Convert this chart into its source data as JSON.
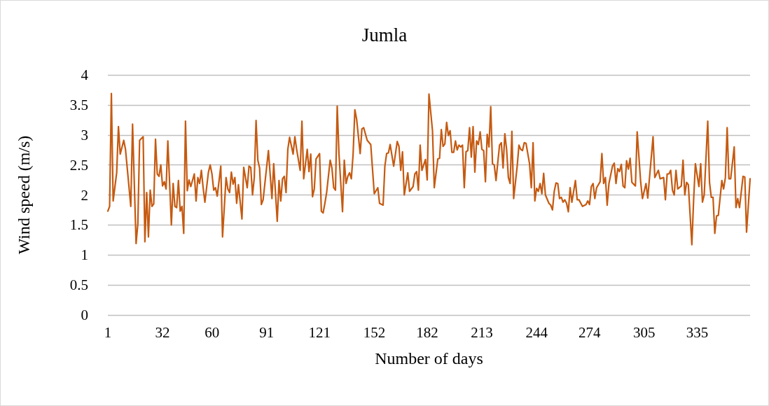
{
  "chart_data": {
    "type": "line",
    "title": "Jumla",
    "xlabel": "Number of days",
    "ylabel": "Wind speed (m/s)",
    "xlim": [
      1,
      365
    ],
    "xticks": [
      1,
      32,
      60,
      91,
      121,
      152,
      182,
      213,
      244,
      274,
      305,
      335
    ],
    "ylim": [
      0,
      4
    ],
    "yticks": [
      0,
      0.5,
      1,
      1.5,
      2,
      2.5,
      3,
      3.5,
      4
    ],
    "grid": "y",
    "marker": "none",
    "line_style": "solid",
    "series": [
      {
        "color": "#c55a11",
        "x": [
          1,
          2,
          3,
          4,
          6,
          7,
          8,
          10,
          11,
          14,
          15,
          17,
          18,
          19,
          21,
          22,
          23,
          24,
          25,
          26,
          27,
          28,
          29,
          30,
          31,
          32,
          33,
          34,
          35,
          37,
          38,
          39,
          40,
          41,
          42,
          43,
          44,
          45,
          46,
          47,
          48,
          50,
          51,
          52,
          53,
          54,
          55,
          56,
          58,
          59,
          60,
          61,
          62,
          63,
          65,
          66,
          68,
          69,
          70,
          71,
          72,
          73,
          74,
          75,
          77,
          78,
          80,
          81,
          82,
          83,
          84,
          85,
          86,
          87,
          88,
          89,
          92,
          94,
          95,
          97,
          98,
          99,
          100,
          101,
          102,
          103,
          104,
          106,
          107,
          108,
          110,
          111,
          112,
          114,
          115,
          116,
          117,
          118,
          119,
          121,
          122,
          123,
          124,
          125,
          127,
          128,
          129,
          130,
          131,
          132,
          134,
          135,
          136,
          137,
          138,
          139,
          140,
          141,
          142,
          144,
          145,
          146,
          148,
          150,
          152,
          154,
          155,
          157,
          158,
          159,
          160,
          161,
          163,
          165,
          166,
          167,
          168,
          169,
          171,
          172,
          174,
          175,
          176,
          177,
          178,
          179,
          181,
          182,
          183,
          185,
          186,
          188,
          189,
          190,
          191,
          192,
          193,
          194,
          195,
          196,
          197,
          198,
          199,
          200,
          201,
          202,
          203,
          204,
          205,
          206,
          207,
          208,
          209,
          210,
          211,
          212,
          213,
          214,
          215,
          216,
          217,
          218,
          219,
          220,
          221,
          222,
          223,
          224,
          225,
          226,
          227,
          228,
          229,
          230,
          231,
          233,
          234,
          235,
          236,
          237,
          238,
          240,
          241,
          242,
          243,
          244,
          245,
          246,
          247,
          248,
          249,
          251,
          252,
          253,
          254,
          255,
          256,
          257,
          258,
          259,
          260,
          261,
          262,
          263,
          264,
          266,
          267,
          268,
          270,
          272,
          273,
          274,
          275,
          276,
          277,
          278,
          280,
          281,
          282,
          283,
          284,
          285,
          287,
          288,
          289,
          290,
          291,
          292,
          293,
          294,
          295,
          296,
          297,
          298,
          300,
          301,
          303,
          304,
          306,
          307,
          310,
          311,
          312,
          313,
          314,
          316,
          317,
          318,
          319,
          320,
          321,
          322,
          323,
          324,
          326,
          327,
          328,
          329,
          330,
          332,
          333,
          334,
          336,
          337,
          338,
          339,
          341,
          342,
          343,
          344,
          345,
          346,
          347,
          349,
          350,
          351,
          352,
          353,
          354,
          356,
          357,
          358,
          359,
          361,
          362,
          363,
          365
        ],
        "values": [
          1.73,
          1.81,
          3.69,
          1.9,
          2.37,
          3.14,
          2.68,
          2.91,
          2.76,
          1.81,
          3.18,
          1.19,
          1.52,
          2.91,
          2.97,
          1.22,
          2.04,
          1.3,
          2.08,
          1.81,
          1.85,
          2.93,
          2.35,
          2.31,
          2.5,
          2.15,
          2.22,
          2.1,
          2.9,
          1.5,
          2.19,
          1.81,
          1.79,
          2.24,
          1.73,
          1.81,
          1.36,
          3.23,
          2.07,
          2.25,
          2.14,
          2.35,
          1.9,
          2.29,
          2.19,
          2.41,
          2.12,
          1.88,
          2.38,
          2.5,
          2.35,
          2.08,
          2.12,
          1.98,
          2.48,
          1.3,
          2.29,
          2.1,
          2.04,
          2.38,
          2.18,
          2.29,
          1.86,
          2.17,
          1.6,
          2.46,
          2.12,
          2.48,
          2.46,
          2.0,
          2.29,
          3.24,
          2.58,
          2.45,
          1.84,
          1.92,
          2.74,
          1.94,
          2.52,
          1.56,
          2.24,
          1.9,
          2.27,
          2.31,
          2.04,
          2.76,
          2.96,
          2.68,
          2.97,
          2.76,
          2.41,
          3.23,
          2.27,
          2.76,
          2.39,
          2.68,
          1.97,
          2.1,
          2.6,
          2.69,
          1.73,
          1.7,
          1.86,
          2.04,
          2.58,
          2.45,
          2.12,
          2.08,
          3.48,
          2.68,
          1.72,
          2.58,
          2.19,
          2.31,
          2.37,
          2.27,
          2.68,
          3.42,
          3.26,
          2.69,
          3.1,
          3.12,
          2.91,
          2.84,
          2.02,
          2.12,
          1.86,
          1.83,
          2.48,
          2.69,
          2.7,
          2.84,
          2.48,
          2.89,
          2.81,
          2.41,
          2.72,
          2.0,
          2.37,
          2.06,
          2.14,
          2.35,
          2.39,
          2.08,
          2.83,
          2.41,
          2.59,
          2.25,
          3.68,
          3.07,
          2.12,
          2.6,
          2.61,
          3.09,
          2.81,
          2.85,
          3.21,
          2.99,
          3.07,
          2.71,
          2.71,
          2.9,
          2.75,
          2.83,
          2.8,
          2.83,
          2.12,
          2.72,
          2.74,
          3.12,
          2.63,
          3.14,
          2.38,
          2.9,
          2.84,
          3.05,
          2.76,
          2.74,
          2.22,
          3.01,
          2.8,
          3.47,
          2.52,
          2.5,
          2.24,
          2.54,
          2.83,
          2.87,
          2.45,
          3.02,
          2.76,
          2.29,
          2.19,
          3.06,
          1.94,
          2.48,
          2.83,
          2.76,
          2.74,
          2.87,
          2.86,
          2.52,
          2.12,
          2.87,
          1.9,
          2.11,
          2.06,
          2.19,
          2.02,
          2.36,
          2.0,
          1.86,
          1.83,
          1.75,
          2.06,
          2.2,
          2.19,
          1.94,
          1.96,
          1.88,
          1.92,
          1.86,
          1.72,
          2.12,
          1.88,
          2.24,
          1.92,
          1.92,
          1.81,
          1.84,
          1.9,
          1.84,
          2.14,
          2.19,
          1.94,
          2.12,
          2.22,
          2.69,
          2.19,
          2.29,
          1.83,
          2.19,
          2.48,
          2.53,
          2.19,
          2.44,
          2.39,
          2.51,
          2.15,
          2.12,
          2.57,
          2.43,
          2.61,
          2.21,
          2.15,
          3.05,
          2.21,
          1.94,
          2.19,
          1.95,
          2.97,
          2.29,
          2.35,
          2.41,
          2.27,
          2.29,
          1.92,
          2.35,
          2.35,
          2.41,
          2.08,
          2.0,
          2.41,
          2.1,
          2.15,
          2.58,
          2.0,
          2.21,
          2.17,
          1.17,
          1.92,
          2.52,
          2.14,
          2.52,
          1.88,
          2.0,
          3.23,
          2.21,
          1.96,
          1.96,
          1.36,
          1.65,
          1.66,
          2.24,
          2.1,
          2.29,
          3.12,
          2.27,
          2.27,
          2.8,
          1.79,
          1.94,
          1.79,
          2.31,
          2.3,
          1.38,
          2.27
        ]
      }
    ]
  }
}
